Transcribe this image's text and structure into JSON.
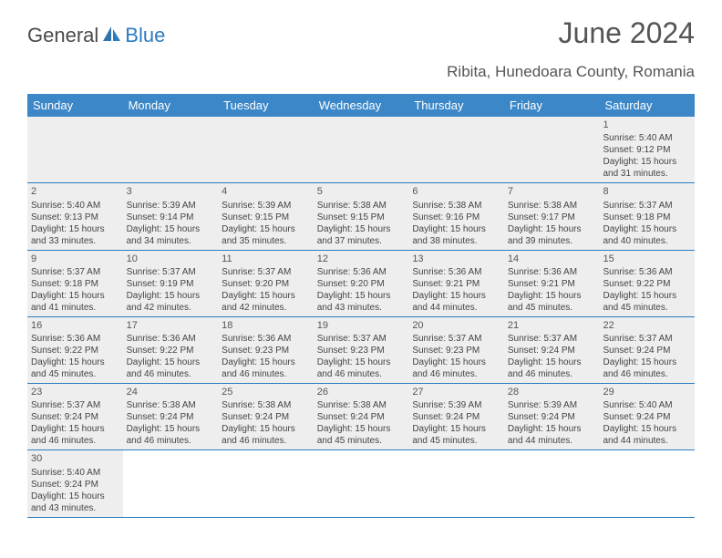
{
  "brand": {
    "text1": "General",
    "text2": "Blue"
  },
  "title": "June 2024",
  "location": "Ribita, Hunedoara County, Romania",
  "colors": {
    "header_bg": "#3b87c8",
    "border": "#2c7bbf",
    "shaded": "#eeeeee",
    "text": "#555555",
    "brand_gray": "#4a4a4a",
    "brand_blue": "#2c7bbf"
  },
  "fonts": {
    "title_size": 32,
    "location_size": 17,
    "header_size": 13,
    "cell_size": 10
  },
  "day_headers": [
    "Sunday",
    "Monday",
    "Tuesday",
    "Wednesday",
    "Thursday",
    "Friday",
    "Saturday"
  ],
  "weeks": [
    [
      null,
      null,
      null,
      null,
      null,
      null,
      {
        "n": "1",
        "sr": "5:40 AM",
        "ss": "9:12 PM",
        "dl": "15 hours and 31 minutes."
      }
    ],
    [
      {
        "n": "2",
        "sr": "5:40 AM",
        "ss": "9:13 PM",
        "dl": "15 hours and 33 minutes."
      },
      {
        "n": "3",
        "sr": "5:39 AM",
        "ss": "9:14 PM",
        "dl": "15 hours and 34 minutes."
      },
      {
        "n": "4",
        "sr": "5:39 AM",
        "ss": "9:15 PM",
        "dl": "15 hours and 35 minutes."
      },
      {
        "n": "5",
        "sr": "5:38 AM",
        "ss": "9:15 PM",
        "dl": "15 hours and 37 minutes."
      },
      {
        "n": "6",
        "sr": "5:38 AM",
        "ss": "9:16 PM",
        "dl": "15 hours and 38 minutes."
      },
      {
        "n": "7",
        "sr": "5:38 AM",
        "ss": "9:17 PM",
        "dl": "15 hours and 39 minutes."
      },
      {
        "n": "8",
        "sr": "5:37 AM",
        "ss": "9:18 PM",
        "dl": "15 hours and 40 minutes."
      }
    ],
    [
      {
        "n": "9",
        "sr": "5:37 AM",
        "ss": "9:18 PM",
        "dl": "15 hours and 41 minutes."
      },
      {
        "n": "10",
        "sr": "5:37 AM",
        "ss": "9:19 PM",
        "dl": "15 hours and 42 minutes."
      },
      {
        "n": "11",
        "sr": "5:37 AM",
        "ss": "9:20 PM",
        "dl": "15 hours and 42 minutes."
      },
      {
        "n": "12",
        "sr": "5:36 AM",
        "ss": "9:20 PM",
        "dl": "15 hours and 43 minutes."
      },
      {
        "n": "13",
        "sr": "5:36 AM",
        "ss": "9:21 PM",
        "dl": "15 hours and 44 minutes."
      },
      {
        "n": "14",
        "sr": "5:36 AM",
        "ss": "9:21 PM",
        "dl": "15 hours and 45 minutes."
      },
      {
        "n": "15",
        "sr": "5:36 AM",
        "ss": "9:22 PM",
        "dl": "15 hours and 45 minutes."
      }
    ],
    [
      {
        "n": "16",
        "sr": "5:36 AM",
        "ss": "9:22 PM",
        "dl": "15 hours and 45 minutes."
      },
      {
        "n": "17",
        "sr": "5:36 AM",
        "ss": "9:22 PM",
        "dl": "15 hours and 46 minutes."
      },
      {
        "n": "18",
        "sr": "5:36 AM",
        "ss": "9:23 PM",
        "dl": "15 hours and 46 minutes."
      },
      {
        "n": "19",
        "sr": "5:37 AM",
        "ss": "9:23 PM",
        "dl": "15 hours and 46 minutes."
      },
      {
        "n": "20",
        "sr": "5:37 AM",
        "ss": "9:23 PM",
        "dl": "15 hours and 46 minutes."
      },
      {
        "n": "21",
        "sr": "5:37 AM",
        "ss": "9:24 PM",
        "dl": "15 hours and 46 minutes."
      },
      {
        "n": "22",
        "sr": "5:37 AM",
        "ss": "9:24 PM",
        "dl": "15 hours and 46 minutes."
      }
    ],
    [
      {
        "n": "23",
        "sr": "5:37 AM",
        "ss": "9:24 PM",
        "dl": "15 hours and 46 minutes."
      },
      {
        "n": "24",
        "sr": "5:38 AM",
        "ss": "9:24 PM",
        "dl": "15 hours and 46 minutes."
      },
      {
        "n": "25",
        "sr": "5:38 AM",
        "ss": "9:24 PM",
        "dl": "15 hours and 46 minutes."
      },
      {
        "n": "26",
        "sr": "5:38 AM",
        "ss": "9:24 PM",
        "dl": "15 hours and 45 minutes."
      },
      {
        "n": "27",
        "sr": "5:39 AM",
        "ss": "9:24 PM",
        "dl": "15 hours and 45 minutes."
      },
      {
        "n": "28",
        "sr": "5:39 AM",
        "ss": "9:24 PM",
        "dl": "15 hours and 44 minutes."
      },
      {
        "n": "29",
        "sr": "5:40 AM",
        "ss": "9:24 PM",
        "dl": "15 hours and 44 minutes."
      }
    ],
    [
      {
        "n": "30",
        "sr": "5:40 AM",
        "ss": "9:24 PM",
        "dl": "15 hours and 43 minutes."
      },
      null,
      null,
      null,
      null,
      null,
      null
    ]
  ],
  "labels": {
    "sunrise": "Sunrise:",
    "sunset": "Sunset:",
    "daylight": "Daylight:"
  }
}
